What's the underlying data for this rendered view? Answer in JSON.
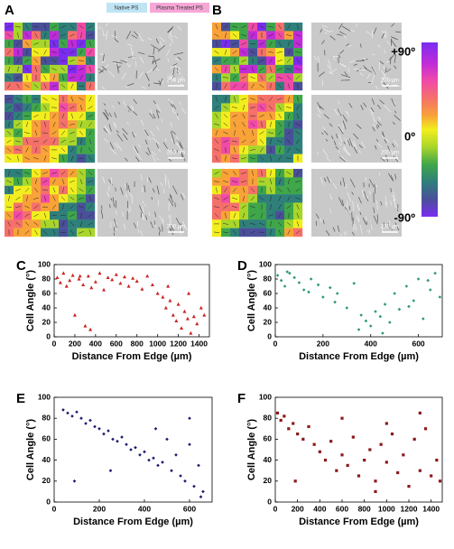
{
  "figure": {
    "panel_a": "A",
    "panel_b": "B",
    "header_native": "Native PS",
    "header_plasma": "Plasma Treated PS",
    "scale_bars": [
      "200 µm",
      "200 µm",
      "200 µm",
      "200 µm",
      "200 µm",
      "200 µm"
    ],
    "colorbar_labels": [
      "+90º",
      "0º",
      "-90º"
    ]
  },
  "chart_data": [
    {
      "type": "scatter",
      "panel": "C",
      "x_label": "Distance From Edge (µm)",
      "y_label": "Cell Angle (°)",
      "color": "#cc2222",
      "marker": "triangle",
      "xlim": [
        0,
        1500
      ],
      "xticks": [
        0,
        200,
        400,
        600,
        800,
        1000,
        1200,
        1400
      ],
      "ylim": [
        0,
        100
      ],
      "yticks": [
        0,
        20,
        40,
        60,
        80,
        100
      ],
      "x": [
        30,
        60,
        90,
        120,
        150,
        180,
        200,
        240,
        280,
        300,
        330,
        360,
        400,
        440,
        480,
        520,
        560,
        600,
        640,
        680,
        720,
        760,
        800,
        850,
        900,
        950,
        1000,
        1050,
        1080,
        1120,
        1150,
        1180,
        1200,
        1230,
        1260,
        1290,
        1320,
        1350,
        1380,
        1420,
        1450,
        250,
        350,
        1100,
        1300
      ],
      "values": [
        82,
        75,
        88,
        70,
        78,
        85,
        30,
        80,
        72,
        15,
        84,
        68,
        76,
        88,
        65,
        82,
        79,
        86,
        74,
        83,
        70,
        81,
        77,
        66,
        84,
        72,
        60,
        55,
        40,
        50,
        30,
        22,
        45,
        12,
        35,
        25,
        5,
        28,
        18,
        40,
        30,
        84,
        10,
        70,
        60
      ]
    },
    {
      "type": "scatter",
      "panel": "D",
      "x_label": "Distance From Edge (µm)",
      "y_label": "Cell Angle (°)",
      "color": "#2e9a6e",
      "marker": "diamond",
      "xlim": [
        0,
        700
      ],
      "xticks": [
        0,
        200,
        400,
        600
      ],
      "ylim": [
        0,
        100
      ],
      "yticks": [
        0,
        20,
        40,
        60,
        80,
        100
      ],
      "x": [
        10,
        25,
        40,
        60,
        80,
        100,
        120,
        150,
        180,
        200,
        230,
        260,
        300,
        330,
        360,
        380,
        400,
        420,
        440,
        460,
        480,
        500,
        520,
        550,
        580,
        600,
        620,
        650,
        670,
        690,
        50,
        140,
        250,
        350,
        450,
        560,
        640
      ],
      "values": [
        85,
        78,
        70,
        88,
        82,
        75,
        65,
        80,
        72,
        55,
        68,
        60,
        40,
        74,
        30,
        22,
        15,
        35,
        28,
        45,
        20,
        60,
        38,
        70,
        50,
        80,
        25,
        65,
        88,
        55,
        90,
        62,
        48,
        10,
        5,
        42,
        78
      ]
    },
    {
      "type": "scatter",
      "panel": "E",
      "x_label": "Distance From Edge (µm)",
      "y_label": "Cell Angle (°)",
      "color": "#1a1a6e",
      "marker": "diamond",
      "xlim": [
        0,
        700
      ],
      "xticks": [
        0,
        200,
        400,
        600
      ],
      "ylim": [
        0,
        100
      ],
      "yticks": [
        0,
        20,
        40,
        60,
        80,
        100
      ],
      "x": [
        40,
        60,
        80,
        100,
        120,
        140,
        160,
        180,
        200,
        220,
        240,
        260,
        280,
        300,
        320,
        340,
        360,
        380,
        400,
        420,
        440,
        460,
        480,
        500,
        520,
        540,
        560,
        580,
        600,
        620,
        640,
        660,
        90,
        250,
        450,
        600,
        650
      ],
      "values": [
        88,
        85,
        82,
        86,
        80,
        75,
        78,
        72,
        70,
        65,
        68,
        60,
        58,
        62,
        55,
        50,
        52,
        45,
        48,
        40,
        42,
        35,
        38,
        60,
        30,
        45,
        25,
        20,
        55,
        15,
        35,
        10,
        20,
        30,
        70,
        80,
        5
      ]
    },
    {
      "type": "scatter",
      "panel": "F",
      "x_label": "Distance From Edge (µm)",
      "y_label": "Cell Angle (°)",
      "color": "#8b1a1a",
      "marker": "square",
      "xlim": [
        0,
        1500
      ],
      "xticks": [
        0,
        200,
        400,
        600,
        800,
        1000,
        1200,
        1400
      ],
      "ylim": [
        0,
        100
      ],
      "yticks": [
        0,
        20,
        40,
        60,
        80,
        100
      ],
      "x": [
        20,
        50,
        80,
        120,
        160,
        200,
        250,
        300,
        350,
        400,
        450,
        500,
        550,
        600,
        650,
        700,
        750,
        800,
        850,
        900,
        950,
        1000,
        1050,
        1100,
        1150,
        1200,
        1250,
        1300,
        1350,
        1400,
        1450,
        1480,
        180,
        600,
        1000,
        1300,
        900
      ],
      "values": [
        85,
        78,
        82,
        70,
        75,
        65,
        60,
        72,
        55,
        48,
        40,
        58,
        30,
        45,
        35,
        62,
        25,
        40,
        50,
        20,
        55,
        38,
        65,
        28,
        45,
        15,
        60,
        30,
        70,
        25,
        40,
        20,
        20,
        80,
        75,
        85,
        10
      ]
    }
  ]
}
